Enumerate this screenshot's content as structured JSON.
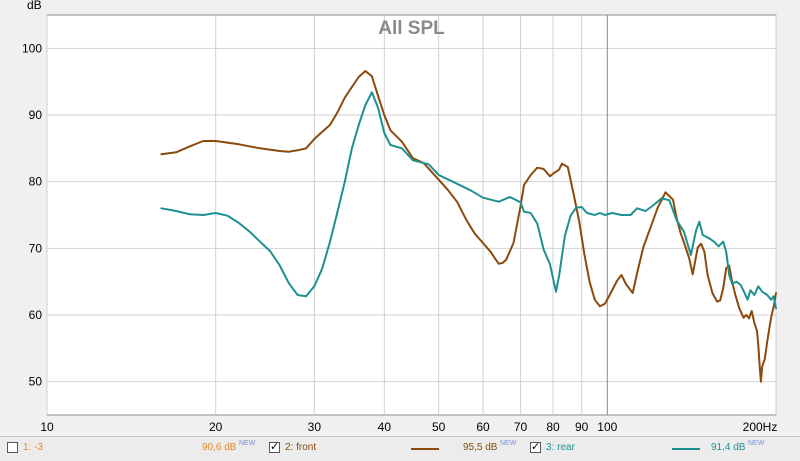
{
  "chart_data": {
    "type": "line",
    "title": "All SPL",
    "ylabel": "dB",
    "xlabel": "",
    "xscale": "log",
    "xlim": [
      10,
      200
    ],
    "ylim": [
      45,
      105
    ],
    "x_ticks": [
      10,
      20,
      30,
      40,
      50,
      60,
      70,
      80,
      90,
      100,
      200
    ],
    "x_tick_labels": [
      "10",
      "20",
      "30",
      "40",
      "50",
      "60",
      "70",
      "80",
      "90",
      "100",
      "200Hz"
    ],
    "y_ticks": [
      50,
      60,
      70,
      80,
      90,
      100
    ],
    "y_tick_labels": [
      "50",
      "60",
      "70",
      "80",
      "90",
      "100"
    ],
    "grid": true,
    "series": [
      {
        "name": "2: front",
        "color": "#8b4a0c",
        "points": [
          [
            16,
            84.1
          ],
          [
            17,
            84.4
          ],
          [
            18,
            85.3
          ],
          [
            19,
            86.1
          ],
          [
            20,
            86.1
          ],
          [
            22,
            85.6
          ],
          [
            24,
            85.0
          ],
          [
            26,
            84.6
          ],
          [
            27,
            84.5
          ],
          [
            28,
            84.7
          ],
          [
            29,
            85.0
          ],
          [
            30,
            86.4
          ],
          [
            31,
            87.5
          ],
          [
            32,
            88.5
          ],
          [
            33,
            90.4
          ],
          [
            34,
            92.6
          ],
          [
            35,
            94.2
          ],
          [
            36,
            95.7
          ],
          [
            37,
            96.6
          ],
          [
            38,
            95.8
          ],
          [
            39,
            92.8
          ],
          [
            40,
            90.0
          ],
          [
            41,
            87.7
          ],
          [
            43,
            86.0
          ],
          [
            45,
            83.5
          ],
          [
            47,
            82.8
          ],
          [
            50,
            80.3
          ],
          [
            52,
            78.7
          ],
          [
            54,
            76.9
          ],
          [
            56,
            74.3
          ],
          [
            58,
            72.2
          ],
          [
            60,
            70.8
          ],
          [
            62,
            69.4
          ],
          [
            63,
            68.5
          ],
          [
            64,
            67.7
          ],
          [
            65,
            67.8
          ],
          [
            66,
            68.3
          ],
          [
            68,
            70.8
          ],
          [
            70,
            76.3
          ],
          [
            71,
            79.5
          ],
          [
            73,
            81.0
          ],
          [
            75,
            82.1
          ],
          [
            77,
            81.9
          ],
          [
            79,
            80.8
          ],
          [
            80,
            81.2
          ],
          [
            82,
            81.8
          ],
          [
            83,
            82.7
          ],
          [
            85,
            82.2
          ],
          [
            87,
            78.3
          ],
          [
            89,
            74.2
          ],
          [
            91,
            69.1
          ],
          [
            93,
            64.9
          ],
          [
            95,
            62.3
          ],
          [
            97,
            61.3
          ],
          [
            99,
            61.7
          ],
          [
            101,
            63.0
          ],
          [
            104,
            65.1
          ],
          [
            106,
            66.0
          ],
          [
            108,
            64.6
          ],
          [
            111,
            63.3
          ],
          [
            113,
            66.3
          ],
          [
            116,
            70.2
          ],
          [
            120,
            73.6
          ],
          [
            123,
            76.1
          ],
          [
            127,
            78.4
          ],
          [
            131,
            77.3
          ],
          [
            133,
            74.5
          ],
          [
            135,
            72.4
          ],
          [
            138,
            70.1
          ],
          [
            140,
            68.5
          ],
          [
            142,
            66.1
          ],
          [
            145,
            70.1
          ],
          [
            147,
            70.7
          ],
          [
            149,
            69.5
          ],
          [
            151,
            66.0
          ],
          [
            154,
            63.3
          ],
          [
            157,
            62.0
          ],
          [
            159,
            62.2
          ],
          [
            161,
            64.0
          ],
          [
            163,
            67.0
          ],
          [
            165,
            67.4
          ],
          [
            167,
            65.0
          ],
          [
            169,
            63.2
          ],
          [
            172,
            61.0
          ],
          [
            175,
            59.6
          ],
          [
            177,
            60.0
          ],
          [
            179,
            59.5
          ],
          [
            181,
            60.6
          ],
          [
            183,
            58.8
          ],
          [
            185,
            57.6
          ],
          [
            186,
            55.5
          ],
          [
            187,
            52.5
          ],
          [
            188,
            50.0
          ],
          [
            189,
            52.3
          ],
          [
            191,
            53.4
          ],
          [
            193,
            56.1
          ],
          [
            196,
            59.6
          ],
          [
            198,
            61.2
          ],
          [
            200,
            63.3
          ]
        ]
      },
      {
        "name": "3: rear",
        "color": "#1f9090",
        "points": [
          [
            16,
            76.0
          ],
          [
            17,
            75.6
          ],
          [
            18,
            75.1
          ],
          [
            19,
            75.0
          ],
          [
            20,
            75.3
          ],
          [
            21,
            74.9
          ],
          [
            22,
            73.8
          ],
          [
            23,
            72.5
          ],
          [
            24,
            71.0
          ],
          [
            25,
            69.6
          ],
          [
            26,
            67.5
          ],
          [
            27,
            64.8
          ],
          [
            28,
            63.0
          ],
          [
            29,
            62.8
          ],
          [
            30,
            64.3
          ],
          [
            31,
            67.0
          ],
          [
            32,
            71.0
          ],
          [
            33,
            75.5
          ],
          [
            34,
            80.0
          ],
          [
            35,
            85.0
          ],
          [
            36,
            88.5
          ],
          [
            37,
            91.5
          ],
          [
            38,
            93.4
          ],
          [
            39,
            91.0
          ],
          [
            40,
            87.3
          ],
          [
            41,
            85.5
          ],
          [
            43,
            85.0
          ],
          [
            45,
            83.2
          ],
          [
            48,
            82.6
          ],
          [
            50,
            81.0
          ],
          [
            53,
            80.0
          ],
          [
            57,
            78.7
          ],
          [
            60,
            77.6
          ],
          [
            64,
            77.0
          ],
          [
            67,
            77.7
          ],
          [
            70,
            76.9
          ],
          [
            71,
            75.5
          ],
          [
            73,
            75.3
          ],
          [
            75,
            73.7
          ],
          [
            77,
            69.8
          ],
          [
            79,
            67.6
          ],
          [
            80,
            65.5
          ],
          [
            81,
            63.5
          ],
          [
            82,
            65.8
          ],
          [
            84,
            71.9
          ],
          [
            86,
            74.9
          ],
          [
            88,
            76.1
          ],
          [
            90,
            76.2
          ],
          [
            92,
            75.3
          ],
          [
            95,
            75.0
          ],
          [
            97,
            75.3
          ],
          [
            99,
            75.0
          ],
          [
            102,
            75.3
          ],
          [
            106,
            75.0
          ],
          [
            110,
            75.0
          ],
          [
            113,
            76.0
          ],
          [
            117,
            75.6
          ],
          [
            121,
            76.5
          ],
          [
            125,
            77.5
          ],
          [
            129,
            77.2
          ],
          [
            133,
            74.2
          ],
          [
            137,
            72.5
          ],
          [
            141,
            69.0
          ],
          [
            144,
            72.7
          ],
          [
            146,
            74.0
          ],
          [
            148,
            72.0
          ],
          [
            152,
            71.5
          ],
          [
            155,
            71.0
          ],
          [
            158,
            70.3
          ],
          [
            161,
            71.0
          ],
          [
            163,
            69.5
          ],
          [
            165,
            66.0
          ],
          [
            167,
            64.7
          ],
          [
            170,
            65.0
          ],
          [
            173,
            64.5
          ],
          [
            176,
            63.2
          ],
          [
            178,
            62.3
          ],
          [
            180,
            63.7
          ],
          [
            183,
            63.0
          ],
          [
            186,
            64.3
          ],
          [
            189,
            63.5
          ],
          [
            193,
            63.0
          ],
          [
            196,
            62.3
          ],
          [
            198,
            62.8
          ],
          [
            200,
            61.0
          ]
        ]
      }
    ]
  },
  "legend": [
    {
      "checked": false,
      "checkmark": "",
      "name": "1: -3",
      "name_color": "#e28a25",
      "swatch_color": "",
      "value": "90,6 dB",
      "badge": "NEW",
      "value_color": "#e28a25"
    },
    {
      "checked": true,
      "checkmark": "✓",
      "name": "2: front",
      "name_color": "#8b4a0c",
      "swatch_color": "#8b4a0c",
      "value": "95,5 dB",
      "badge": "NEW",
      "value_color": "#8b4a0c"
    },
    {
      "checked": true,
      "checkmark": "✓",
      "name": "3: rear",
      "name_color": "#1f9090",
      "swatch_color": "#1f9090",
      "value": "91,4 dB",
      "badge": "NEW",
      "value_color": "#1f9090"
    }
  ]
}
